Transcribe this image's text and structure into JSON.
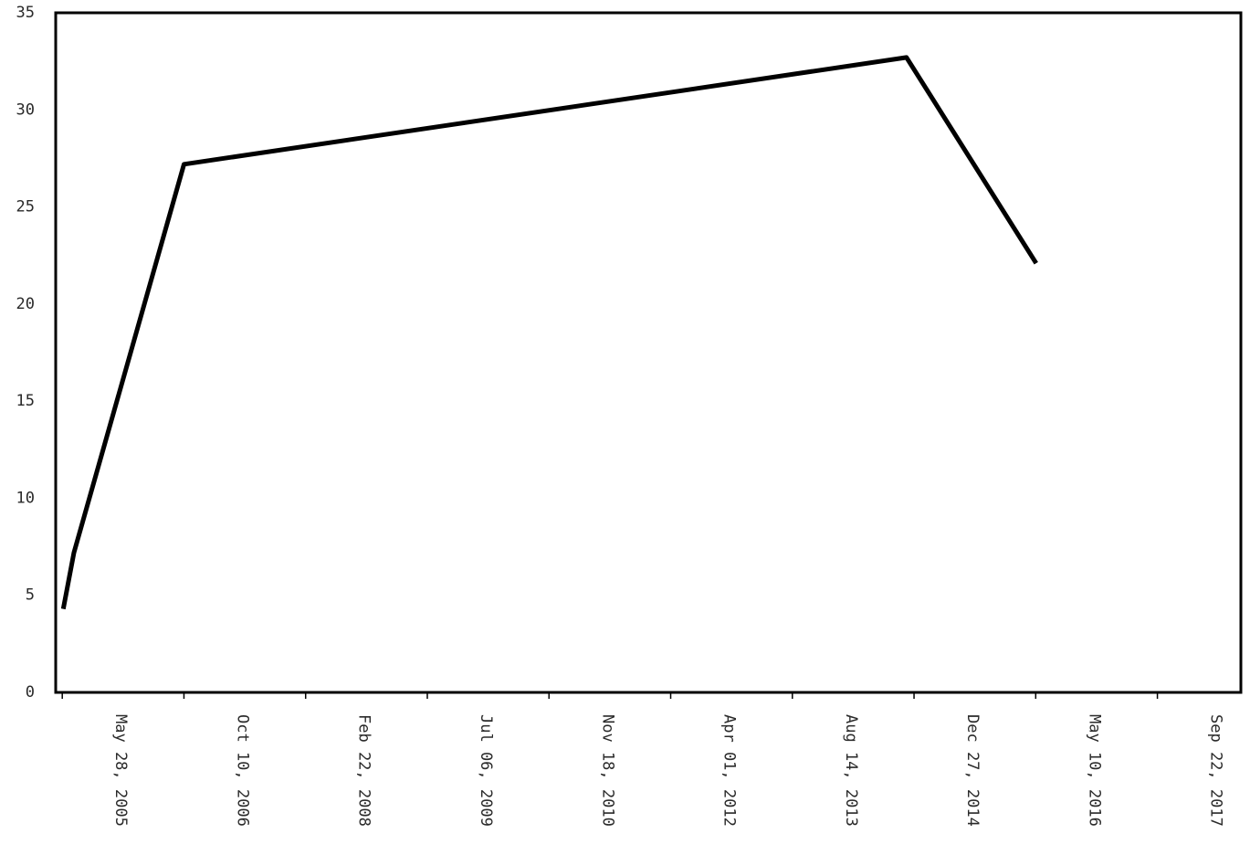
{
  "chart_data": {
    "type": "line",
    "title": "",
    "xlabel": "",
    "ylabel": "",
    "xlim": [
      "2005-05-01",
      "2018-08-31"
    ],
    "ylim": [
      0,
      35
    ],
    "x_ticks": [
      "May 28, 2005",
      "Oct 10, 2006",
      "Feb 22, 2008",
      "Jul 06, 2009",
      "Nov 18, 2010",
      "Apr 01, 2012",
      "Aug 14, 2013",
      "Dec 27, 2014",
      "May 10, 2016",
      "Sep 22, 2017"
    ],
    "x_tick_dates": [
      "2005-05-28",
      "2006-10-10",
      "2008-02-22",
      "2009-07-06",
      "2010-11-18",
      "2012-04-01",
      "2013-08-14",
      "2014-12-27",
      "2016-05-10",
      "2017-09-22"
    ],
    "y_ticks": [
      "0",
      "5",
      "10",
      "15",
      "20",
      "25",
      "30",
      "35"
    ],
    "y_tick_values": [
      0,
      5,
      10,
      15,
      20,
      25,
      30,
      35
    ],
    "grid": false,
    "series": [
      {
        "color": "#000000",
        "points": [
          {
            "x": "2005-06-01",
            "y": 4.3
          },
          {
            "x": "2005-07-15",
            "y": 7.2
          },
          {
            "x": "2006-10-10",
            "y": 27.2
          },
          {
            "x": "2014-11-26",
            "y": 32.7
          },
          {
            "x": "2016-05-12",
            "y": 22.1
          }
        ]
      }
    ]
  }
}
